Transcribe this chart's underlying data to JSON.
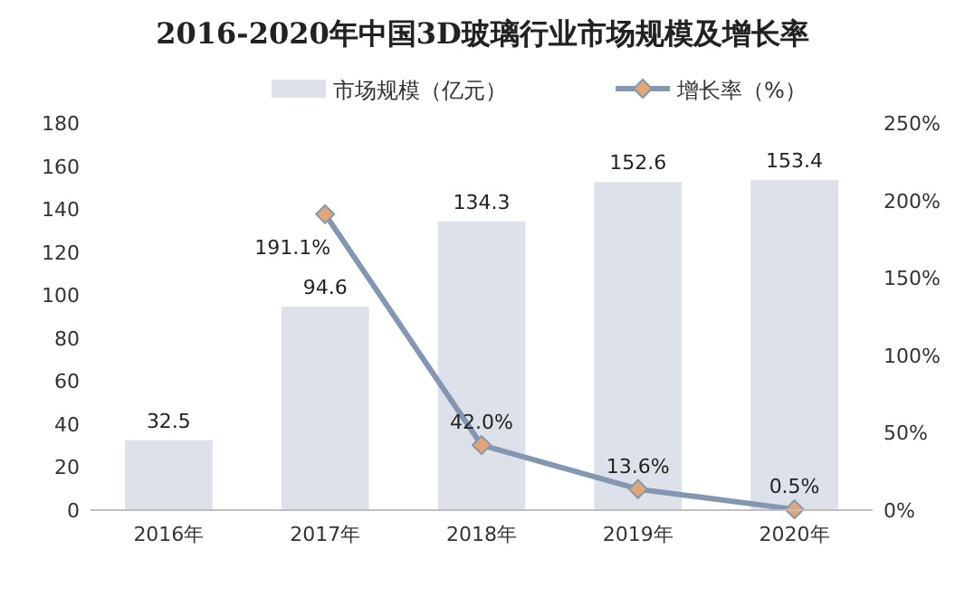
{
  "chart_data": {
    "type": "bar",
    "title": "2016-2020年中国3D玻璃行业市场规模及增长率",
    "categories": [
      "2016年",
      "2017年",
      "2018年",
      "2019年",
      "2020年"
    ],
    "series": [
      {
        "name": "市场规模（亿元）",
        "color": "#dde1ea",
        "values": [
          32.5,
          94.6,
          134.3,
          152.6,
          153.4
        ],
        "value_labels": [
          "32.5",
          "94.6",
          "134.3",
          "152.6",
          "153.4"
        ]
      },
      {
        "name": "增长率（%）",
        "type": "line",
        "axis": "y2",
        "color": "#8497b0",
        "values": [
          null,
          191.1,
          42.0,
          13.6,
          0.5
        ],
        "value_labels": [
          null,
          "191.1%",
          "42.0%",
          "13.6%",
          "0.5%"
        ]
      }
    ],
    "ylim": [
      0,
      180
    ],
    "yticks": [
      0,
      20,
      40,
      60,
      80,
      100,
      120,
      140,
      160,
      180
    ],
    "y2lim": [
      0,
      250
    ],
    "y2ticks": [
      {
        "value": 0,
        "label": "0%"
      },
      {
        "value": 50,
        "label": "50%"
      },
      {
        "value": 100,
        "label": "100%"
      },
      {
        "value": 150,
        "label": "150%"
      },
      {
        "value": 200,
        "label": "200%"
      },
      {
        "value": 250,
        "label": "250%"
      }
    ],
    "marker": "diamond",
    "legend": "top"
  }
}
